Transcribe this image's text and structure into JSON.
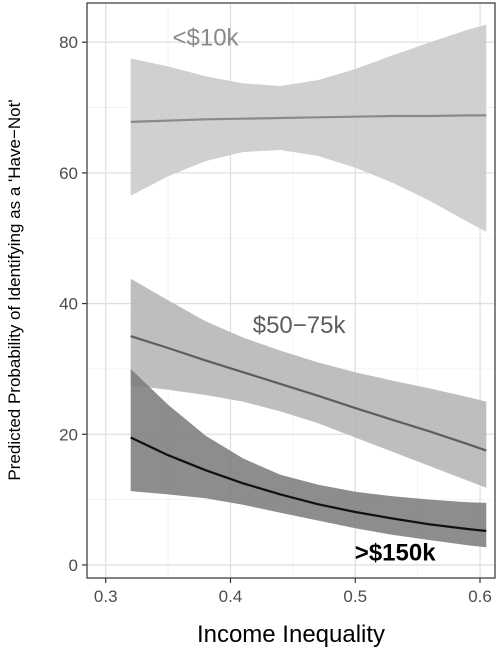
{
  "chart_data": {
    "type": "line",
    "title": "",
    "xlabel": "Income Inequality",
    "ylabel": "Predicted Probability of Identifying as a 'Have−Not'",
    "xlim": [
      0.285,
      0.612
    ],
    "ylim": [
      -2,
      86
    ],
    "x_ticks": [
      0.3,
      0.4,
      0.5,
      0.6
    ],
    "x_tick_labels": [
      "0.3",
      "0.4",
      "0.5",
      "0.6"
    ],
    "y_ticks": [
      0,
      20,
      40,
      60,
      80
    ],
    "y_tick_labels": [
      "0",
      "20",
      "40",
      "60",
      "80"
    ],
    "grid": true,
    "legend": "none",
    "series": [
      {
        "name": "<$10k",
        "color": "#8a8a8a",
        "band_color": "#c9c9c9",
        "x": [
          0.32,
          0.35,
          0.38,
          0.41,
          0.44,
          0.47,
          0.5,
          0.53,
          0.56,
          0.59,
          0.605
        ],
        "y": [
          67.8,
          68.0,
          68.2,
          68.3,
          68.4,
          68.5,
          68.6,
          68.7,
          68.7,
          68.8,
          68.8
        ],
        "lower": [
          56.5,
          59.5,
          61.8,
          63.2,
          63.5,
          62.6,
          60.8,
          58.5,
          55.7,
          52.5,
          51.0
        ],
        "upper": [
          77.5,
          76.3,
          74.8,
          73.7,
          73.3,
          74.2,
          75.9,
          78.0,
          80.0,
          81.9,
          82.7
        ]
      },
      {
        "name": "$50−75k",
        "color": "#5e5e5e",
        "band_color": "#b5b5b5",
        "x": [
          0.32,
          0.35,
          0.38,
          0.41,
          0.44,
          0.47,
          0.5,
          0.53,
          0.56,
          0.59,
          0.605
        ],
        "y": [
          35.0,
          33.2,
          31.3,
          29.5,
          27.7,
          25.9,
          24.0,
          22.2,
          20.4,
          18.5,
          17.5
        ],
        "lower": [
          27.5,
          26.8,
          26.0,
          25.0,
          23.5,
          21.7,
          19.5,
          17.3,
          15.1,
          12.9,
          11.8
        ],
        "upper": [
          43.8,
          40.5,
          37.3,
          34.8,
          32.8,
          31.0,
          29.5,
          28.2,
          27.0,
          25.7,
          25.0
        ]
      },
      {
        "name": ">$150k",
        "color": "#111111",
        "band_color": "#7d7d7d",
        "x": [
          0.32,
          0.35,
          0.38,
          0.41,
          0.44,
          0.47,
          0.5,
          0.53,
          0.56,
          0.59,
          0.605
        ],
        "y": [
          19.5,
          16.8,
          14.5,
          12.5,
          10.8,
          9.3,
          8.1,
          7.1,
          6.2,
          5.5,
          5.2
        ],
        "lower": [
          11.3,
          10.8,
          10.2,
          9.2,
          8.0,
          6.8,
          5.6,
          4.6,
          3.8,
          3.0,
          2.7
        ],
        "upper": [
          30.0,
          24.5,
          19.8,
          16.3,
          13.8,
          12.3,
          11.2,
          10.5,
          10.0,
          9.6,
          9.5
        ]
      }
    ],
    "annotations": [
      {
        "text": "<$10k",
        "x": 0.38,
        "y": 79.5,
        "color": "#8a8a8a",
        "weight": "normal"
      },
      {
        "text": "$50−75k",
        "x": 0.455,
        "y": 35.5,
        "color": "#5e5e5e",
        "weight": "normal"
      },
      {
        "text": ">$150k",
        "x": 0.532,
        "y": 0.7,
        "color": "#000000",
        "weight": "bold"
      }
    ]
  }
}
